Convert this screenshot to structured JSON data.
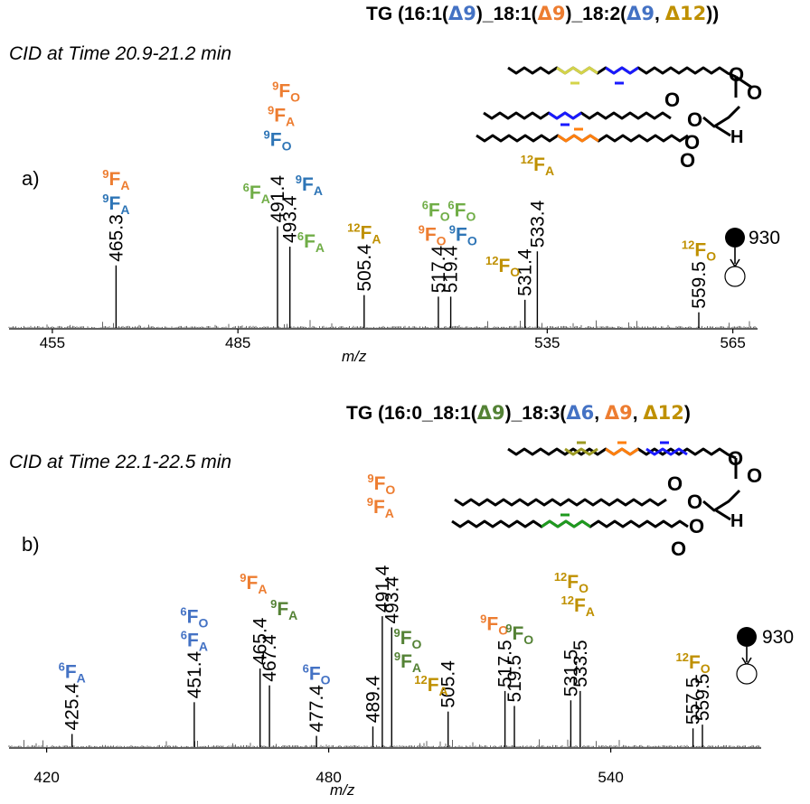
{
  "colors": {
    "blue": "#4472c4",
    "orange": "#ed7d31",
    "green_light": "#70ad47",
    "green_dark": "#548235",
    "gold": "#bf9000",
    "teal_blue": "#2e75b6",
    "struct_yellow": "#d4d44a",
    "struct_blue": "#1a1aff",
    "struct_orange": "#ff7f0e",
    "struct_olive": "#9c9a22",
    "struct_green": "#1f9a1f"
  },
  "icons": [
    "filled-circle-precursor-icon",
    "open-circle-product-icon",
    "down-arrow-icon",
    "lipid-structure-icon"
  ],
  "chart_data": [
    {
      "type": "bar",
      "panel_label": "a)",
      "title": "TG (16:1(Δ9)_18:1(Δ9)_18:2(Δ9, Δ12))",
      "subtitle": "CID at Time 20.9-21.2 min",
      "xlabel": "m/z",
      "ylabel": "",
      "xlim": [
        448,
        569
      ],
      "xticks": [
        455,
        485,
        535,
        565
      ],
      "ylim": [
        0,
        1
      ],
      "precursor": "930",
      "peaks": [
        {
          "x": 465.3,
          "y": 0.4,
          "label": "465.3"
        },
        {
          "x": 491.4,
          "y": 0.65,
          "label": "491.4"
        },
        {
          "x": 493.4,
          "y": 0.52,
          "label": "493.4"
        },
        {
          "x": 505.4,
          "y": 0.21,
          "label": "505.4"
        },
        {
          "x": 517.4,
          "y": 0.2,
          "label": "517.4"
        },
        {
          "x": 519.4,
          "y": 0.2,
          "label": "519.4"
        },
        {
          "x": 531.4,
          "y": 0.18,
          "label": "531.4"
        },
        {
          "x": 533.4,
          "y": 0.49,
          "label": "533.4"
        },
        {
          "x": 559.5,
          "y": 0.1,
          "label": "559.5"
        }
      ],
      "annotations": [
        {
          "pre": "9",
          "main": "F",
          "sub": "A",
          "color": "orange",
          "x": 465.3,
          "row": 2
        },
        {
          "pre": "9",
          "main": "F",
          "sub": "A",
          "color": "teal_blue",
          "x": 465.3,
          "row": 1
        },
        {
          "pre": "6",
          "main": "F",
          "sub": "A",
          "color": "green_light",
          "x": 488.0,
          "row": 4
        },
        {
          "pre": "9",
          "main": "F",
          "sub": "O",
          "color": "orange",
          "x": 492.8,
          "row": 4
        },
        {
          "pre": "9",
          "main": "F",
          "sub": "A",
          "color": "orange",
          "x": 492.0,
          "row": 3
        },
        {
          "pre": "9",
          "main": "F",
          "sub": "O",
          "color": "teal_blue",
          "x": 491.4,
          "row": 2
        },
        {
          "pre": "6",
          "main": "F",
          "sub": "A",
          "color": "green_light",
          "x": 496.8,
          "row": 2
        },
        {
          "pre": "9",
          "main": "F",
          "sub": "A",
          "color": "teal_blue",
          "x": 496.5,
          "row": 1
        },
        {
          "pre": "12",
          "main": "F",
          "sub": "A",
          "color": "gold",
          "x": 505.4,
          "row": 1
        },
        {
          "pre": "6",
          "main": "F",
          "sub": "O",
          "color": "green_light",
          "x": 517.0,
          "row": 2
        },
        {
          "pre": "6",
          "main": "F",
          "sub": "O",
          "color": "green_light",
          "x": 521.2,
          "row": 2
        },
        {
          "pre": "9",
          "main": "F",
          "sub": "O",
          "color": "orange",
          "x": 516.4,
          "row": 1
        },
        {
          "pre": "9",
          "main": "F",
          "sub": "O",
          "color": "teal_blue",
          "x": 521.4,
          "row": 1
        },
        {
          "pre": "12",
          "main": "F",
          "sub": "O",
          "color": "gold",
          "x": 527.8,
          "row": 1
        },
        {
          "pre": "12",
          "main": "F",
          "sub": "A",
          "color": "gold",
          "x": 533.4,
          "row": 2
        },
        {
          "pre": "12",
          "main": "F",
          "sub": "O",
          "color": "gold",
          "x": 559.5,
          "row": 1
        }
      ]
    },
    {
      "type": "bar",
      "panel_label": "b)",
      "title": "TG (16:0_18:1(Δ9)_18:3(Δ6, Δ9, Δ12)",
      "subtitle": "CID at Time 22.1-22.5 min",
      "xlabel": "m/z",
      "ylabel": "",
      "xlim": [
        412,
        572
      ],
      "xticks": [
        420,
        480,
        540
      ],
      "ylim": [
        0,
        1
      ],
      "precursor": "930",
      "peaks": [
        {
          "x": 425.4,
          "y": 0.07,
          "label": "425.4"
        },
        {
          "x": 451.4,
          "y": 0.24,
          "label": "451.4"
        },
        {
          "x": 465.4,
          "y": 0.42,
          "label": "465.4"
        },
        {
          "x": 467.4,
          "y": 0.33,
          "label": "467.4"
        },
        {
          "x": 477.4,
          "y": 0.06,
          "label": "477.4"
        },
        {
          "x": 489.4,
          "y": 0.11,
          "label": "489.4"
        },
        {
          "x": 491.4,
          "y": 0.7,
          "label": "491.4"
        },
        {
          "x": 493.4,
          "y": 0.64,
          "label": "493.4"
        },
        {
          "x": 505.4,
          "y": 0.19,
          "label": "505.4"
        },
        {
          "x": 517.5,
          "y": 0.3,
          "label": "517.5"
        },
        {
          "x": 519.5,
          "y": 0.22,
          "label": "519.5"
        },
        {
          "x": 531.5,
          "y": 0.25,
          "label": "531.5"
        },
        {
          "x": 533.5,
          "y": 0.3,
          "label": "533.5"
        },
        {
          "x": 557.5,
          "y": 0.1,
          "label": "557.5"
        },
        {
          "x": 559.5,
          "y": 0.12,
          "label": "559.5"
        }
      ],
      "annotations": [
        {
          "pre": "6",
          "main": "F",
          "sub": "A",
          "color": "blue",
          "x": 425.4,
          "row": 1
        },
        {
          "pre": "6",
          "main": "F",
          "sub": "O",
          "color": "blue",
          "x": 451.4,
          "row": 2
        },
        {
          "pre": "6",
          "main": "F",
          "sub": "A",
          "color": "blue",
          "x": 451.4,
          "row": 1
        },
        {
          "pre": "9",
          "main": "F",
          "sub": "A",
          "color": "orange",
          "x": 464.0,
          "row": 2
        },
        {
          "pre": "9",
          "main": "F",
          "sub": "A",
          "color": "green_dark",
          "x": 470.5,
          "row": 1.6
        },
        {
          "pre": "6",
          "main": "F",
          "sub": "O",
          "color": "blue",
          "x": 477.4,
          "row": 1
        },
        {
          "pre": "9",
          "main": "F",
          "sub": "O",
          "color": "orange",
          "x": 491.2,
          "row": 4
        },
        {
          "pre": "9",
          "main": "F",
          "sub": "A",
          "color": "orange",
          "x": 491.0,
          "row": 3
        },
        {
          "pre": "9",
          "main": "F",
          "sub": "O",
          "color": "green_dark",
          "x": 496.8,
          "row": 3
        },
        {
          "pre": "9",
          "main": "F",
          "sub": "A",
          "color": "green_dark",
          "x": 496.8,
          "row": 2
        },
        {
          "pre": "12",
          "main": "F",
          "sub": "A",
          "color": "gold",
          "x": 501.8,
          "row": 1
        },
        {
          "pre": "9",
          "main": "F",
          "sub": "O",
          "color": "orange",
          "x": 515.2,
          "row": 1.2
        },
        {
          "pre": "9",
          "main": "F",
          "sub": "O",
          "color": "green_dark",
          "x": 520.6,
          "row": 0.8
        },
        {
          "pre": "12",
          "main": "F",
          "sub": "O",
          "color": "gold",
          "x": 531.6,
          "row": 3
        },
        {
          "pre": "12",
          "main": "F",
          "sub": "A",
          "color": "gold",
          "x": 533.0,
          "row": 2
        },
        {
          "pre": "12",
          "main": "F",
          "sub": "O",
          "color": "gold",
          "x": 557.5,
          "row": 1
        }
      ]
    }
  ]
}
